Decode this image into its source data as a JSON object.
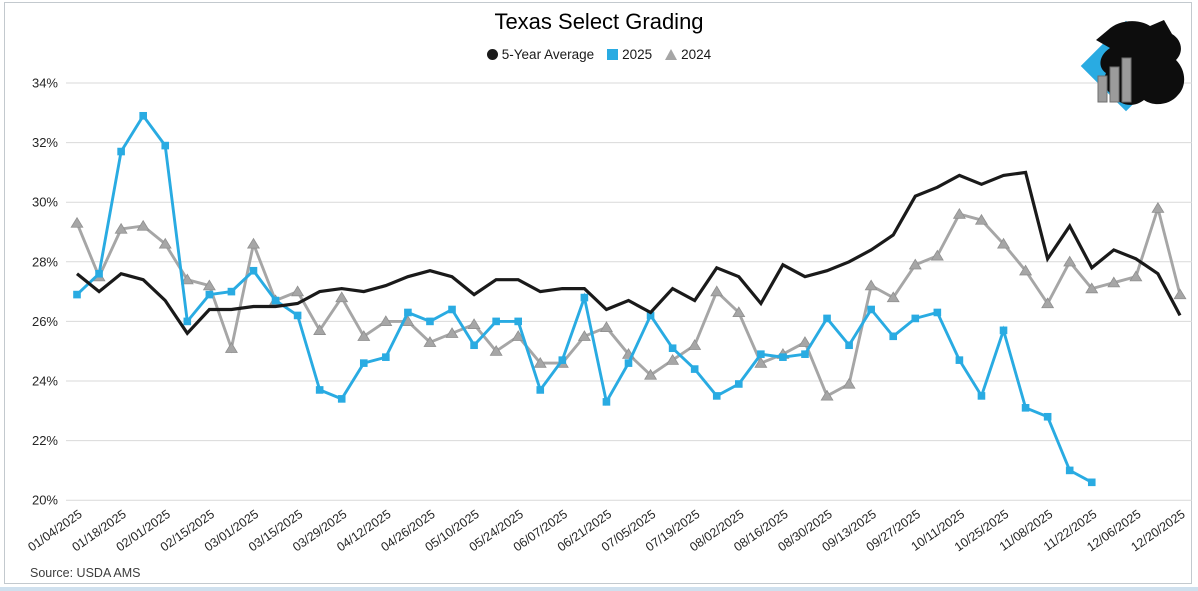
{
  "title": "Texas Select Grading",
  "source_note": "Source: USDA AMS",
  "colors": {
    "five_year_avg": "#1a1a1a",
    "y2025": "#29abe2",
    "y2024": "#a6a6a6",
    "gridline": "#d9d9d9",
    "axis_text": "#262626",
    "frame_border": "#c3c9ce",
    "bottom_strip": "#cfe0ee",
    "logo_diamond": "#29abe2",
    "logo_head": "#0d0d0d",
    "logo_bars": "#9b9b9b"
  },
  "legend": [
    {
      "label": "5-Year Average",
      "marker": "circle",
      "color": "#1a1a1a"
    },
    {
      "label": "2025",
      "marker": "square",
      "color": "#29abe2"
    },
    {
      "label": "2024",
      "marker": "triangle",
      "color": "#a6a6a6"
    }
  ],
  "logo_icon": "cattle-head-bar-chart-diamond-logo",
  "chart_data": {
    "type": "line",
    "title": "Texas Select Grading",
    "ylabel": "",
    "xlabel": "",
    "ylim": [
      20,
      34
    ],
    "grid": "horizontal-only",
    "legend_position": "top-center",
    "ytick_values": [
      34,
      32,
      30,
      28,
      26,
      24,
      22,
      20
    ],
    "ytick_labels": [
      "34%",
      "32%",
      "30%",
      "28%",
      "26%",
      "24%",
      "22%",
      "20%"
    ],
    "x": [
      "01/04/2025",
      "01/11/2025",
      "01/18/2025",
      "01/25/2025",
      "02/01/2025",
      "02/08/2025",
      "02/15/2025",
      "02/22/2025",
      "03/01/2025",
      "03/08/2025",
      "03/15/2025",
      "03/22/2025",
      "03/29/2025",
      "04/05/2025",
      "04/12/2025",
      "04/19/2025",
      "04/26/2025",
      "05/03/2025",
      "05/10/2025",
      "05/17/2025",
      "05/24/2025",
      "05/31/2025",
      "06/07/2025",
      "06/14/2025",
      "06/21/2025",
      "06/28/2025",
      "07/05/2025",
      "07/12/2025",
      "07/19/2025",
      "07/26/2025",
      "08/02/2025",
      "08/09/2025",
      "08/16/2025",
      "08/23/2025",
      "08/30/2025",
      "09/06/2025",
      "09/13/2025",
      "09/20/2025",
      "09/27/2025",
      "10/04/2025",
      "10/11/2025",
      "10/18/2025",
      "10/25/2025",
      "11/01/2025",
      "11/08/2025",
      "11/15/2025",
      "11/22/2025",
      "11/29/2025",
      "12/06/2025",
      "12/13/2025",
      "12/20/2025"
    ],
    "x_tick_labels": [
      "01/04/2025",
      "01/18/2025",
      "02/01/2025",
      "02/15/2025",
      "03/01/2025",
      "03/15/2025",
      "03/29/2025",
      "04/12/2025",
      "04/26/2025",
      "05/10/2025",
      "05/24/2025",
      "06/07/2025",
      "06/21/2025",
      "07/05/2025",
      "07/19/2025",
      "08/02/2025",
      "08/16/2025",
      "08/30/2025",
      "09/13/2025",
      "09/27/2025",
      "10/11/2025",
      "10/25/2025",
      "11/08/2025",
      "11/22/2025",
      "12/06/2025",
      "12/20/2025"
    ],
    "series": [
      {
        "name": "5-Year Average",
        "color": "#1a1a1a",
        "marker": "none",
        "line_width": 3.2,
        "values": [
          27.6,
          27.0,
          27.6,
          27.4,
          26.7,
          25.6,
          26.4,
          26.4,
          26.5,
          26.5,
          26.6,
          27.0,
          27.1,
          27.0,
          27.2,
          27.5,
          27.7,
          27.5,
          26.9,
          27.4,
          27.4,
          27.0,
          27.1,
          27.1,
          26.4,
          26.7,
          26.3,
          27.1,
          26.7,
          27.8,
          27.5,
          26.6,
          27.9,
          27.5,
          27.7,
          28.0,
          28.4,
          28.9,
          30.2,
          30.5,
          30.9,
          30.6,
          30.9,
          31.0,
          28.1,
          29.2,
          27.8,
          28.4,
          28.1,
          27.6,
          26.2
        ]
      },
      {
        "name": "2025",
        "color": "#29abe2",
        "marker": "square",
        "line_width": 2.9,
        "values": [
          26.9,
          27.6,
          31.7,
          32.9,
          31.9,
          26.0,
          26.9,
          27.0,
          27.7,
          26.7,
          26.2,
          23.7,
          23.4,
          24.6,
          24.8,
          26.3,
          26.0,
          26.4,
          25.2,
          26.0,
          26.0,
          23.7,
          24.7,
          26.8,
          23.3,
          24.6,
          26.2,
          25.1,
          24.4,
          23.5,
          23.9,
          24.9,
          24.8,
          24.9,
          26.1,
          25.2,
          26.4,
          25.5,
          26.1,
          26.3,
          24.7,
          23.5,
          25.7,
          23.1,
          22.8,
          21.0,
          20.6
        ]
      },
      {
        "name": "2024",
        "color": "#a6a6a6",
        "marker": "triangle",
        "line_width": 2.9,
        "values": [
          29.3,
          27.5,
          29.1,
          29.2,
          28.6,
          27.4,
          27.2,
          25.1,
          28.6,
          26.7,
          27.0,
          25.7,
          26.8,
          25.5,
          26.0,
          26.0,
          25.3,
          25.6,
          25.9,
          25.0,
          25.5,
          24.6,
          24.6,
          25.5,
          25.8,
          24.9,
          24.2,
          24.7,
          25.2,
          27.0,
          26.3,
          24.6,
          24.9,
          25.3,
          23.5,
          23.9,
          27.2,
          26.8,
          27.9,
          28.2,
          29.6,
          29.4,
          28.6,
          27.7,
          26.6,
          28.0,
          27.1,
          27.3,
          27.5,
          29.8,
          26.9
        ]
      }
    ]
  }
}
